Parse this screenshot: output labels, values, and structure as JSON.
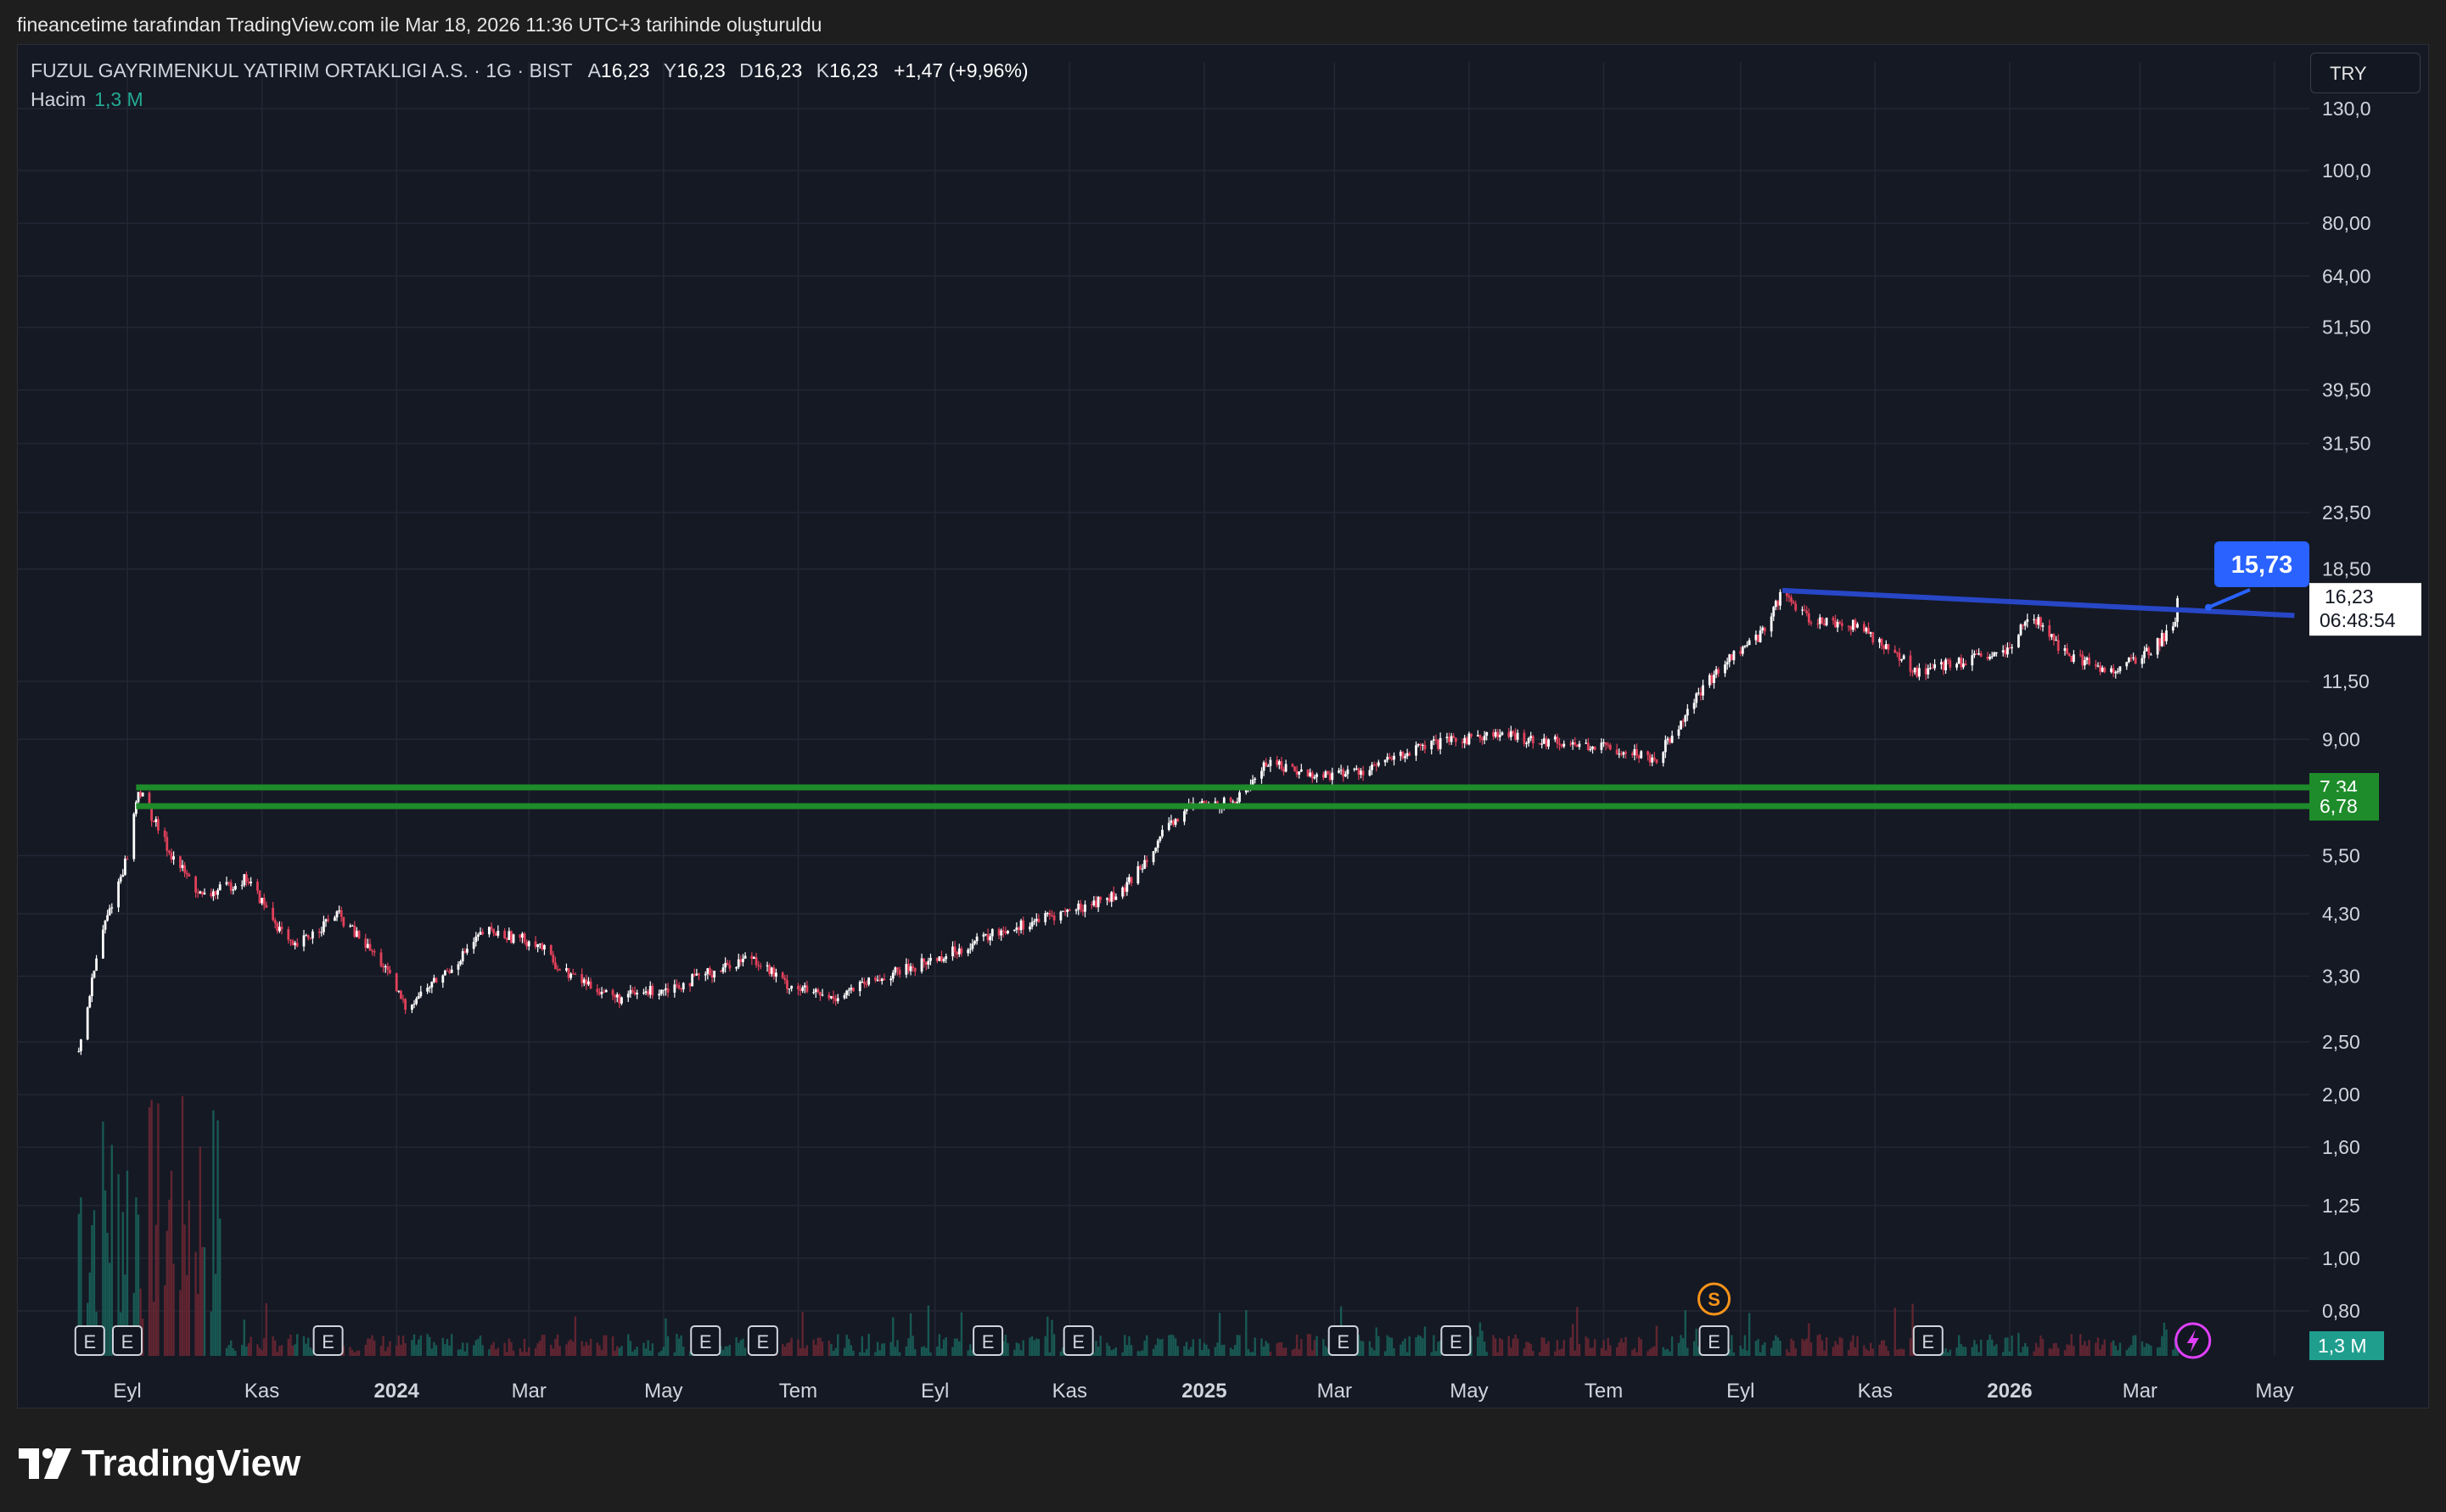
{
  "header": {
    "caption": "fineancetime tarafından TradingView.com ile Mar 18, 2026 11:36 UTC+3 tarihinde oluşturuldu"
  },
  "legend": {
    "symbol": "FUZUL GAYRIMENKUL YATIRIM ORTAKLIGI A.S. · 1G · BIST",
    "open_label": "A",
    "open": "16,23",
    "high_label": "Y",
    "high": "16,23",
    "low_label": "D",
    "low": "16,23",
    "close_label": "K",
    "close": "16,23",
    "change": "+1,47 (+9,96%)",
    "volume_label": "Hacim",
    "volume_value": "1,3 M"
  },
  "currency": "TRY",
  "brand": "TradingView",
  "colors": {
    "up": "#ffffff",
    "down": "#e0405a",
    "trendline": "#2747c7",
    "support": "#1e8c2a",
    "price_tag": "#ffffff",
    "callout": "#2962ff",
    "volume_badge": "#1f9e8e"
  },
  "chart_data": {
    "type": "candlestick",
    "scale": "log",
    "y_ticks": [
      "130,0",
      "100,0",
      "80,00",
      "64,00",
      "51,50",
      "39,50",
      "31,50",
      "23,50",
      "18,50",
      "11,50",
      "9,00",
      "5,50",
      "4,30",
      "3,30",
      "2,50",
      "2,00",
      "1,60",
      "1,25",
      "1,00",
      "0,80"
    ],
    "y_tick_values": [
      130,
      100,
      80,
      64,
      51.5,
      39.5,
      31.5,
      23.5,
      18.5,
      11.5,
      9,
      5.5,
      4.3,
      3.3,
      2.5,
      2,
      1.6,
      1.25,
      1,
      0.8
    ],
    "x_ticks": [
      {
        "label": "Eyl",
        "bold": false
      },
      {
        "label": "Kas",
        "bold": false
      },
      {
        "label": "2024",
        "bold": true
      },
      {
        "label": "Mar",
        "bold": false
      },
      {
        "label": "May",
        "bold": false
      },
      {
        "label": "Tem",
        "bold": false
      },
      {
        "label": "Eyl",
        "bold": false
      },
      {
        "label": "Kas",
        "bold": false
      },
      {
        "label": "2025",
        "bold": true
      },
      {
        "label": "Mar",
        "bold": false
      },
      {
        "label": "May",
        "bold": false
      },
      {
        "label": "Tem",
        "bold": false
      },
      {
        "label": "Eyl",
        "bold": false
      },
      {
        "label": "Kas",
        "bold": false
      },
      {
        "label": "2026",
        "bold": true
      },
      {
        "label": "Mar",
        "bold": false
      },
      {
        "label": "May",
        "bold": false
      }
    ],
    "x_tick_dates": [
      "2023-09",
      "2023-11",
      "2024-01",
      "2024-03",
      "2024-05",
      "2024-07",
      "2024-09",
      "2024-11",
      "2025-01",
      "2025-03",
      "2025-05",
      "2025-07",
      "2025-09",
      "2025-11",
      "2026-01",
      "2026-03",
      "2026-05"
    ],
    "price_path": [
      {
        "date": "2023-08-10",
        "price": 2.4
      },
      {
        "date": "2023-08-20",
        "price": 3.9
      },
      {
        "date": "2023-09-01",
        "price": 5.5
      },
      {
        "date": "2023-09-06",
        "price": 7.3
      },
      {
        "date": "2023-09-20",
        "price": 5.6
      },
      {
        "date": "2023-10-05",
        "price": 4.6
      },
      {
        "date": "2023-10-25",
        "price": 5.0
      },
      {
        "date": "2023-11-15",
        "price": 3.7
      },
      {
        "date": "2023-12-05",
        "price": 4.3
      },
      {
        "date": "2023-12-25",
        "price": 3.5
      },
      {
        "date": "2024-01-05",
        "price": 2.9
      },
      {
        "date": "2024-01-25",
        "price": 3.4
      },
      {
        "date": "2024-02-10",
        "price": 4.0
      },
      {
        "date": "2024-03-05",
        "price": 3.8
      },
      {
        "date": "2024-03-15",
        "price": 3.4
      },
      {
        "date": "2024-04-10",
        "price": 3.0
      },
      {
        "date": "2024-05-10",
        "price": 3.2
      },
      {
        "date": "2024-06-10",
        "price": 3.6
      },
      {
        "date": "2024-06-25",
        "price": 3.2
      },
      {
        "date": "2024-07-15",
        "price": 3.0
      },
      {
        "date": "2024-08-10",
        "price": 3.3
      },
      {
        "date": "2024-09-05",
        "price": 3.6
      },
      {
        "date": "2024-10-01",
        "price": 4.0
      },
      {
        "date": "2024-11-05",
        "price": 4.4
      },
      {
        "date": "2024-11-25",
        "price": 4.7
      },
      {
        "date": "2024-12-10",
        "price": 5.8
      },
      {
        "date": "2024-12-25",
        "price": 6.8
      },
      {
        "date": "2025-01-15",
        "price": 6.9
      },
      {
        "date": "2025-01-30",
        "price": 8.2
      },
      {
        "date": "2025-02-20",
        "price": 7.7
      },
      {
        "date": "2025-03-15",
        "price": 7.9
      },
      {
        "date": "2025-04-10",
        "price": 8.7
      },
      {
        "date": "2025-05-10",
        "price": 9.2
      },
      {
        "date": "2025-06-10",
        "price": 8.9
      },
      {
        "date": "2025-07-10",
        "price": 8.6
      },
      {
        "date": "2025-07-25",
        "price": 8.3
      },
      {
        "date": "2025-08-10",
        "price": 10.5
      },
      {
        "date": "2025-08-25",
        "price": 12.5
      },
      {
        "date": "2025-09-10",
        "price": 14.0
      },
      {
        "date": "2025-09-20",
        "price": 16.8
      },
      {
        "date": "2025-10-01",
        "price": 15.0
      },
      {
        "date": "2025-10-25",
        "price": 14.5
      },
      {
        "date": "2025-11-20",
        "price": 12.0
      },
      {
        "date": "2025-12-15",
        "price": 12.6
      },
      {
        "date": "2026-01-01",
        "price": 13.0
      },
      {
        "date": "2026-01-10",
        "price": 15.5
      },
      {
        "date": "2026-01-25",
        "price": 13.0
      },
      {
        "date": "2026-02-15",
        "price": 12.0
      },
      {
        "date": "2026-03-05",
        "price": 13.0
      },
      {
        "date": "2026-03-17",
        "price": 14.7
      },
      {
        "date": "2026-03-18",
        "price": 16.23
      }
    ],
    "support_levels": [
      {
        "label": "7,34",
        "value": 7.34
      },
      {
        "label": "6,78",
        "value": 6.78
      }
    ],
    "trendline": {
      "start": {
        "date": "2025-09-20",
        "price": 16.9
      },
      "end": {
        "date": "2026-05-10",
        "price": 15.2
      }
    },
    "callout": {
      "label": "15,73",
      "date": "2026-04-01",
      "price": 15.73
    },
    "last_price": {
      "label": "16,23",
      "countdown": "06:48:54",
      "value": 16.23
    },
    "volume_badge": "1,3 M",
    "event_markers": [
      {
        "type": "E",
        "date": "2023-08-15"
      },
      {
        "type": "E",
        "date": "2023-09-01"
      },
      {
        "type": "E",
        "date": "2023-12-01"
      },
      {
        "type": "E",
        "date": "2024-05-20"
      },
      {
        "type": "E",
        "date": "2024-06-15"
      },
      {
        "type": "E",
        "date": "2024-09-25"
      },
      {
        "type": "E",
        "date": "2024-11-05"
      },
      {
        "type": "E",
        "date": "2025-03-05"
      },
      {
        "type": "E",
        "date": "2025-04-25"
      },
      {
        "type": "E",
        "date": "2025-08-20"
      },
      {
        "type": "E",
        "date": "2025-11-25"
      },
      {
        "type": "S",
        "date": "2025-08-20"
      },
      {
        "type": "flash",
        "date": "2026-03-25"
      }
    ]
  }
}
